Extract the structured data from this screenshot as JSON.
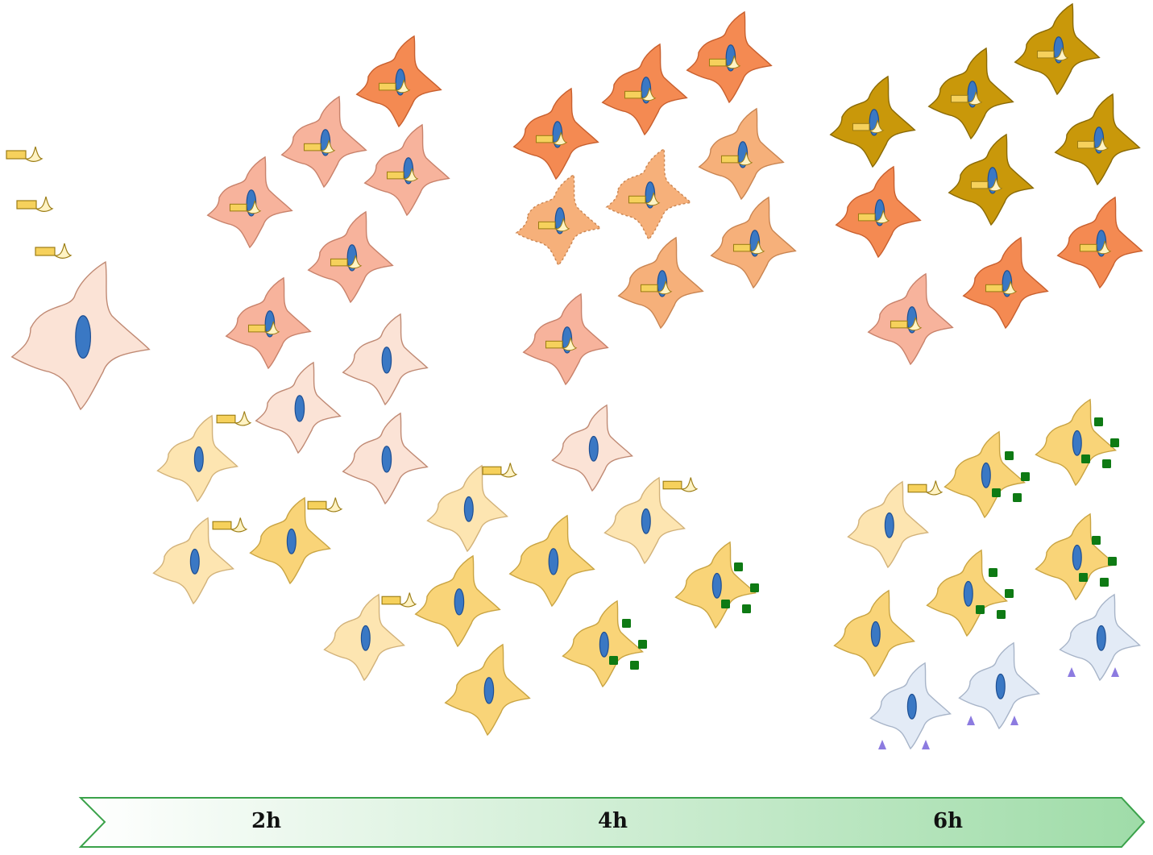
{
  "timeline": {
    "labels": [
      "2h",
      "4h",
      "6h"
    ]
  },
  "colors": {
    "nucleus": "#3a78c4",
    "nucleus_edge": "#1e4f93",
    "cell_pale_pink": "#fbe3d6",
    "cell_pink": "#f7b39c",
    "cell_orange": "#f48a52",
    "cell_light_orange": "#f6b07a",
    "cell_dark_gold": "#c9980a",
    "cell_yellow": "#f9d478",
    "cell_pale_yellow": "#fde5b1",
    "cell_pale_blue": "#e3ebf6",
    "cytokine_square": "#0e7a14",
    "triangle_marker": "#8c7be0",
    "bacterium": "#f6d15c",
    "arrow_fill_start": "#ffffff",
    "arrow_fill_end": "#9fdca8",
    "arrow_edge": "#3aa24a"
  },
  "icons": [
    "cell-icon",
    "nucleus-icon",
    "bacterium-icon",
    "cytokine-square-icon",
    "triangle-marker-icon",
    "timeline-arrow-icon"
  ]
}
